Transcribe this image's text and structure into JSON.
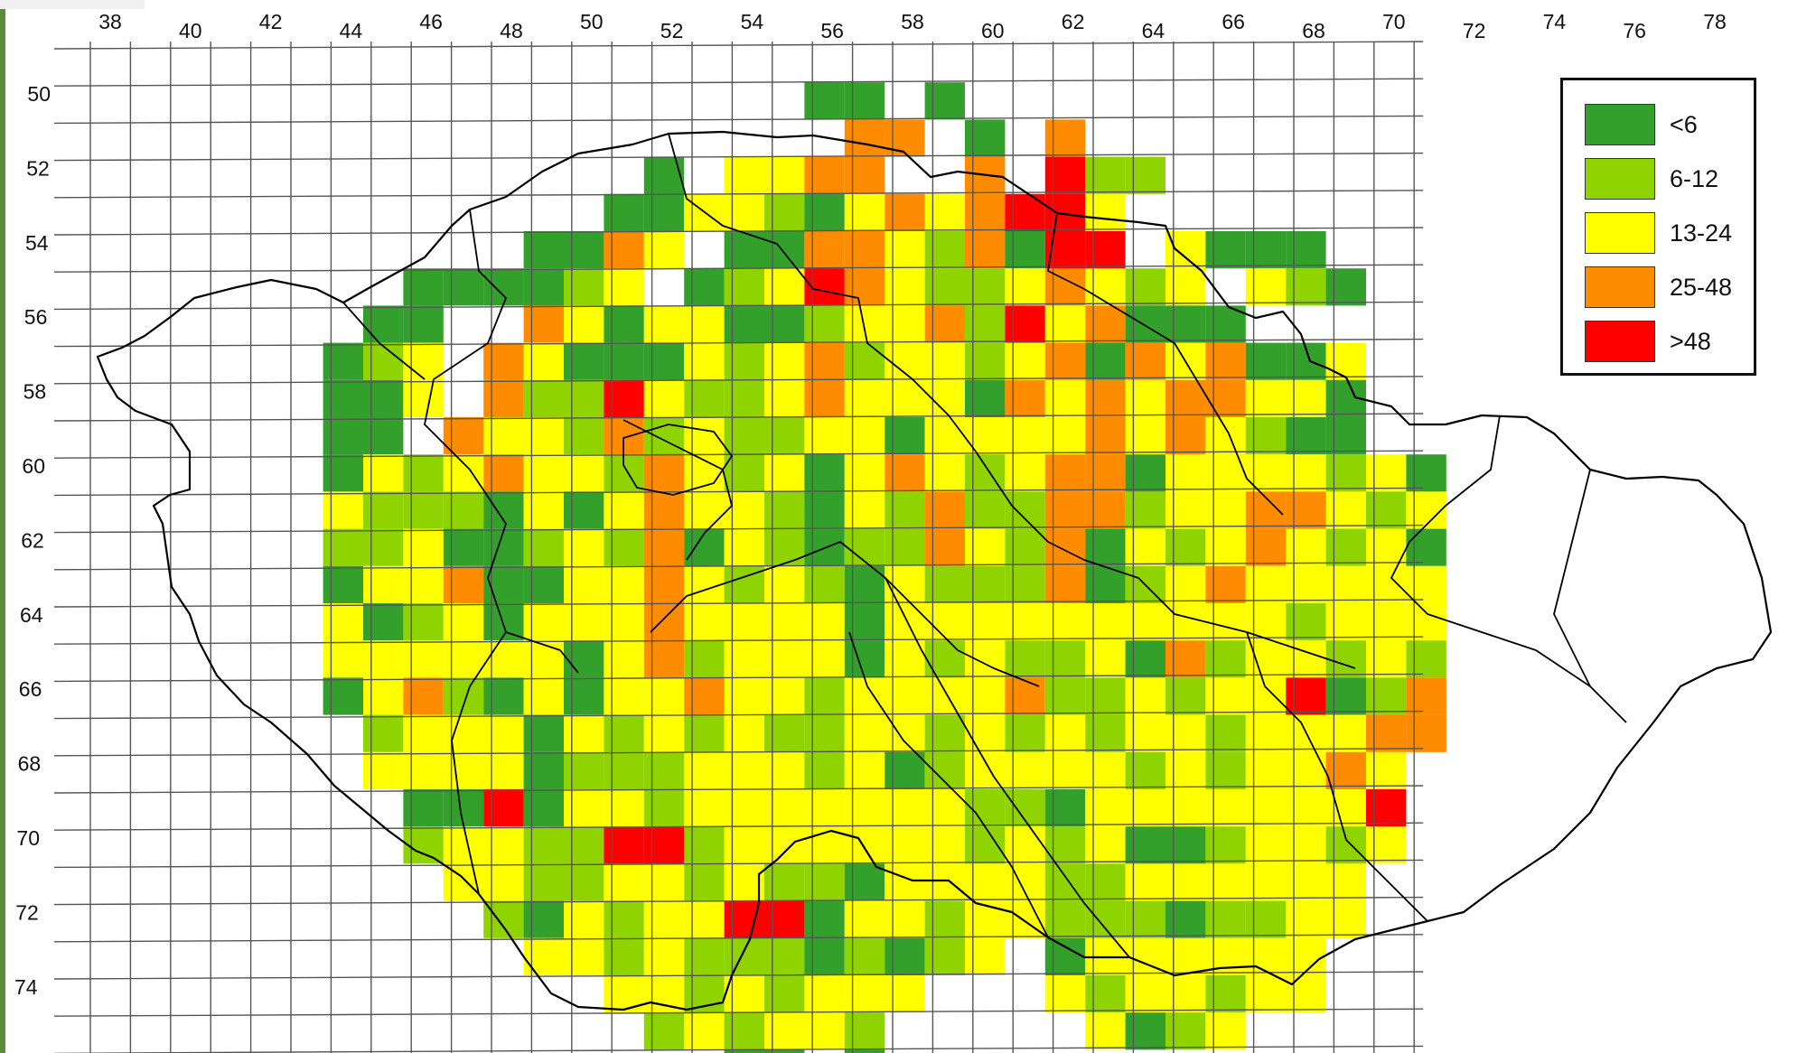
{
  "x_axis_labels": [
    "38",
    "40",
    "42",
    "44",
    "46",
    "48",
    "50",
    "52",
    "54",
    "56",
    "58",
    "60",
    "62",
    "64",
    "66",
    "68",
    "70",
    "72",
    "74",
    "76",
    "78"
  ],
  "y_axis_labels": [
    "50",
    "52",
    "54",
    "56",
    "58",
    "60",
    "62",
    "64",
    "66",
    "68",
    "70",
    "72",
    "74"
  ],
  "legend": [
    {
      "label": "<6",
      "color": "#33a02c"
    },
    {
      "label": "6-12",
      "color": "#8fd400"
    },
    {
      "label": "13-24",
      "color": "#ffff00"
    },
    {
      "label": "25-48",
      "color": "#ff8c00"
    },
    {
      "label": ">48",
      "color": "#ff0000"
    }
  ],
  "palette": {
    "grid_line": "#555555",
    "border_line": "#000000",
    "background": "#ffffff"
  },
  "grid_rows": [
    "...................................................",
    "................gg.g..........",
    ".................oo.g.o.......",
    "............g.yyoo..o.ryy......",
    "...........ggyyygyoyorry.......",
    ".........gyoy.ggooyyogrr.yggg..",
    "......ggggyy.gyyroyyyyoyyy.yyg.",
    ".....gg..oygyygyyyyoyryoggy.....",
    "....gyy.oygggyyyoyyyyyogoyoggy..",
    "....ggy.oyyryyyyoyyyyoyoyooyyg..",
    "....gg.oyyyoyyyyyygyyyyoyoyyyg.",
    "....gyyyoyyyoyyygyoyyyoogyyyyyyg.",
    "....yyyygygyoyyygyyoyyooyyyooyyy.",
    "....yyyggyyyoyyygyyoyyogyyyoyyyg.",
    "....gyyogyyyoyyyygyyyyoyyyoyyyyy.",
    "....ygyygyyyoyyyygyyyyyyyyyyyyyy.",
    "....yyyyyygyoyyyygyyyyyyyoyyyyyy.",
    "....gyoygyyyyoyyyyyyyoyyyyyyryyo.",
    ".....yyyygyyyyyyyyyyyyyyyyyyyyoo",
    ".....yyyygyyyyyyyyyyyyyyyyyyyoy",
    "......yyrgyyyyyyyyyyyygyyyyyyyr",
    "......yyyyyrryyyyyyyyyyyygyyyyy",
    ".......yyyyyyyyyyyyyyyyyyyyyyy",
    "........yyyyyyrryyyyyyyyyyyyyy",
    ".........yyyyyyyyyyyy.yyyyyyy",
    "...........yyyyyyyy...yyyyyyy",
    "............yyyyyy.....yyyy",
    "..............gg.g"
  ]
}
